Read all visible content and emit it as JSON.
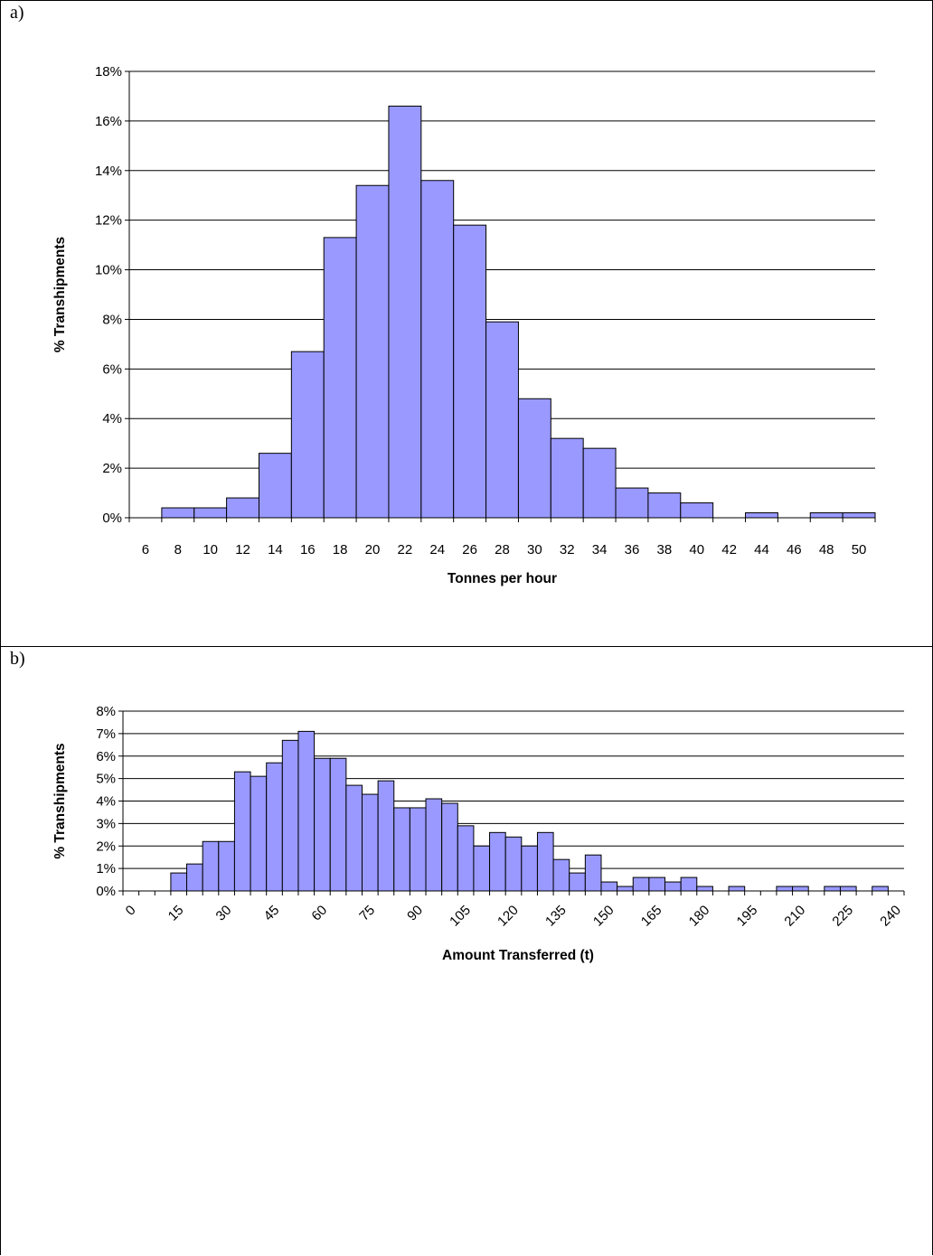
{
  "colors": {
    "bar_fill": "#9999ff",
    "bar_stroke": "#000000",
    "grid": "#000000",
    "background": "#ffffff"
  },
  "panels": [
    {
      "label": "a)"
    },
    {
      "label": "b)"
    }
  ],
  "chart_data": [
    {
      "type": "bar",
      "title": "",
      "xlabel": "Tonnes per hour",
      "ylabel": "% Transhipments",
      "ylim": [
        0,
        18
      ],
      "yticks": [
        "0%",
        "2%",
        "4%",
        "6%",
        "8%",
        "10%",
        "12%",
        "14%",
        "16%",
        "18%"
      ],
      "grid": true,
      "categories": [
        "6",
        "8",
        "10",
        "12",
        "14",
        "16",
        "18",
        "20",
        "22",
        "24",
        "26",
        "28",
        "30",
        "32",
        "34",
        "36",
        "38",
        "40",
        "42",
        "44",
        "46",
        "48",
        "50"
      ],
      "values": [
        0,
        0.4,
        0.4,
        0.8,
        2.6,
        6.7,
        11.3,
        13.4,
        16.6,
        13.6,
        11.8,
        7.9,
        4.8,
        3.2,
        2.8,
        1.2,
        1.0,
        0.6,
        0,
        0.2,
        0,
        0.2,
        0.2
      ]
    },
    {
      "type": "bar",
      "title": "",
      "xlabel": "Amount Transferred (t)",
      "ylabel": "% Transhipments",
      "ylim": [
        0,
        8
      ],
      "yticks": [
        "0%",
        "1%",
        "2%",
        "3%",
        "4%",
        "5%",
        "6%",
        "7%",
        "8%"
      ],
      "grid": true,
      "x": [
        0,
        5,
        10,
        15,
        20,
        25,
        30,
        35,
        40,
        45,
        50,
        55,
        60,
        65,
        70,
        75,
        80,
        85,
        90,
        95,
        100,
        105,
        110,
        115,
        120,
        125,
        130,
        135,
        140,
        145,
        150,
        155,
        160,
        165,
        170,
        175,
        180,
        185,
        190,
        195,
        200,
        205,
        210,
        215,
        220,
        225,
        230,
        235,
        240
      ],
      "values": [
        0,
        0,
        0,
        0.8,
        1.2,
        2.2,
        2.2,
        5.3,
        5.1,
        5.7,
        6.7,
        7.1,
        5.9,
        5.9,
        4.7,
        4.3,
        4.9,
        3.7,
        3.7,
        4.1,
        3.9,
        2.9,
        2.0,
        2.6,
        2.4,
        2.0,
        2.6,
        1.4,
        0.8,
        1.6,
        0.4,
        0.2,
        0.6,
        0.6,
        0.4,
        0.6,
        0.2,
        0,
        0.2,
        0,
        0,
        0.2,
        0.2,
        0,
        0.2,
        0.2,
        0,
        0.2,
        0
      ],
      "xtick_labels": [
        "0",
        "15",
        "30",
        "45",
        "60",
        "75",
        "90",
        "105",
        "120",
        "135",
        "150",
        "165",
        "180",
        "195",
        "210",
        "225",
        "240"
      ]
    }
  ]
}
